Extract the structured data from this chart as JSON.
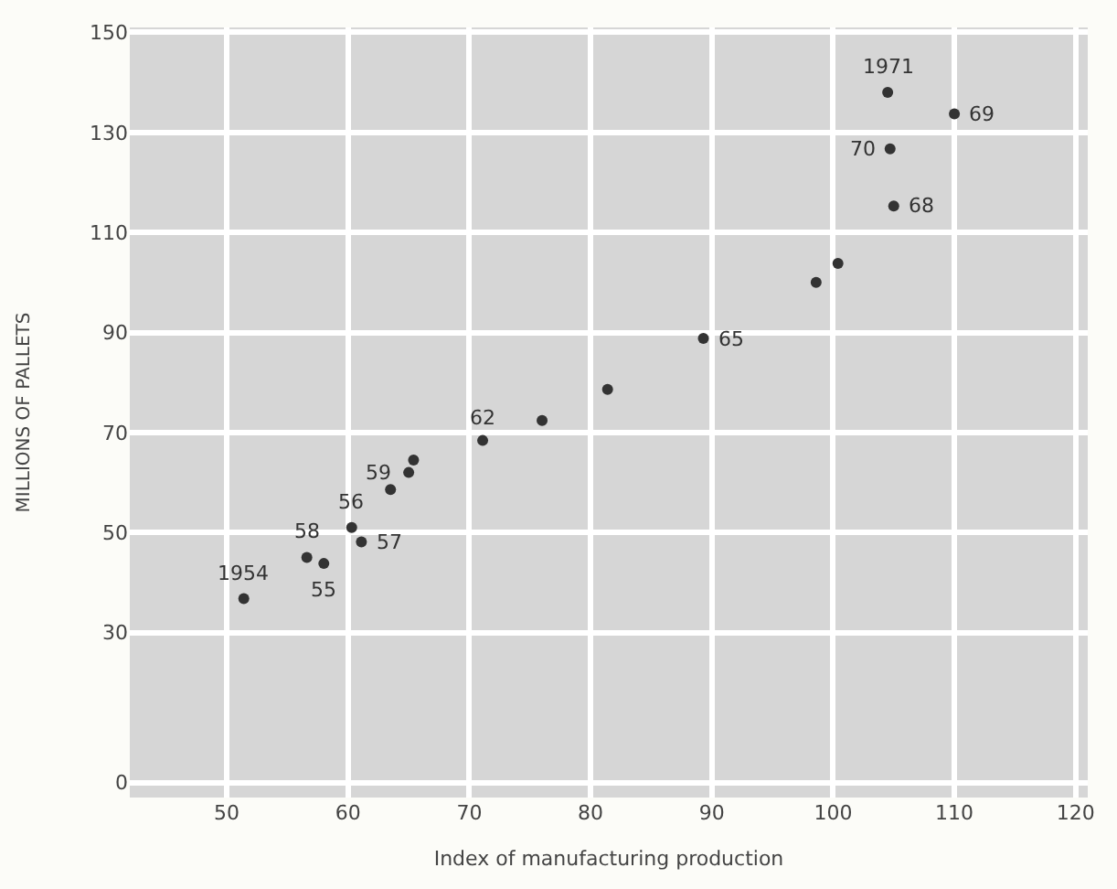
{
  "chart_data": {
    "type": "scatter",
    "xlabel": "Index of manufacturing production",
    "ylabel": "MILLIONS OF PALLETS",
    "x": [
      51.4,
      58.0,
      60.3,
      61.1,
      56.6,
      63.5,
      65.0,
      65.4,
      71.1,
      76.0,
      81.4,
      89.3,
      98.6,
      100.4,
      105.0,
      110.0,
      104.7,
      104.5
    ],
    "series": [
      {
        "color": "#333333",
        "values": [
          36.8,
          43.8,
          51,
          48.1,
          45,
          58.6,
          62,
          64.5,
          68.4,
          72.4,
          78.6,
          88.8,
          100,
          103.8,
          115.3,
          133.7,
          126.7,
          138
        ]
      }
    ],
    "annotations": [
      {
        "text": "1954",
        "x": 51.4,
        "y": 36.8
      },
      {
        "text": "55",
        "x": 58.0,
        "y": 43.8
      },
      {
        "text": "56",
        "x": 60.3,
        "y": 51
      },
      {
        "text": "57",
        "x": 61.1,
        "y": 48.1
      },
      {
        "text": "58",
        "x": 56.6,
        "y": 45
      },
      {
        "text": "59",
        "x": 65.0,
        "y": 62
      },
      {
        "text": "62",
        "x": 71.1,
        "y": 68.4
      },
      {
        "text": "65",
        "x": 89.3,
        "y": 88.8
      },
      {
        "text": "68",
        "x": 105.0,
        "y": 115.3
      },
      {
        "text": "69",
        "x": 110.0,
        "y": 133.7
      },
      {
        "text": "70",
        "x": 104.7,
        "y": 126.7
      },
      {
        "text": "1971",
        "x": 104.5,
        "y": 138
      }
    ],
    "xlim": [
      42,
      121
    ],
    "xticks": [
      50,
      60,
      70,
      80,
      90,
      100,
      110,
      120
    ],
    "ylim": [
      -3,
      151
    ],
    "yticks": [
      0,
      30,
      50,
      70,
      90,
      110,
      130,
      150
    ],
    "grid": true,
    "marker": "circle"
  }
}
